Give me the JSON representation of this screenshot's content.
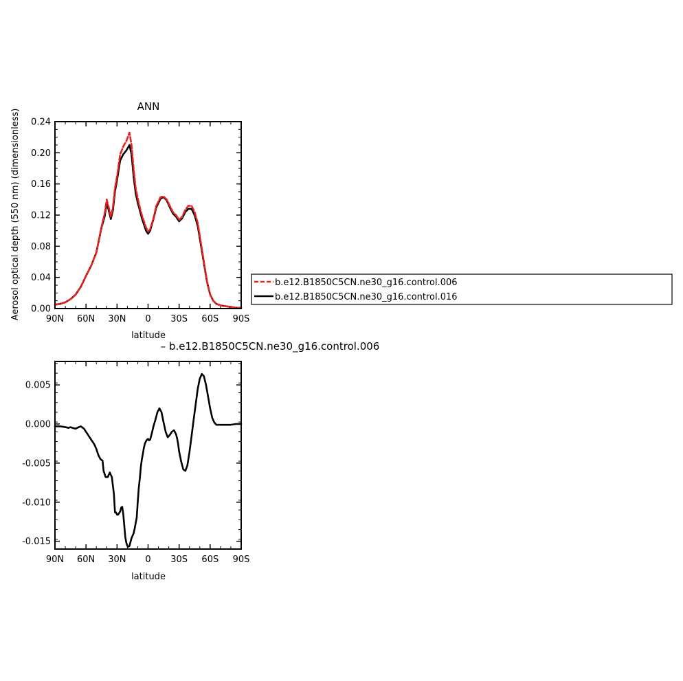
{
  "chart_data": [
    {
      "type": "line",
      "title": "ANN",
      "xlabel": "latitude",
      "ylabel": "Aerosol optical depth (550 nm) (dimensionless)",
      "xlim": [
        90,
        -90
      ],
      "ylim": [
        0.0,
        0.24
      ],
      "x_ticks": [
        90,
        60,
        30,
        0,
        -30,
        -60,
        -90
      ],
      "x_tick_labels": [
        "90N",
        "60N",
        "30N",
        "0",
        "30S",
        "60S",
        "90S"
      ],
      "y_ticks": [
        0.0,
        0.04,
        0.08,
        0.12,
        0.16,
        0.2,
        0.24
      ],
      "y_tick_labels": [
        "0.00",
        "0.04",
        "0.08",
        "0.12",
        "0.16",
        "0.20",
        "0.24"
      ],
      "grid": false,
      "legend_position": "right",
      "series": [
        {
          "name": "b.e12.B1850C5CN.ne30_g16.control.006",
          "color": "#e8231f",
          "style": "dashed",
          "x": [
            90,
            85,
            80,
            75,
            70,
            65,
            60,
            55,
            50,
            45,
            42,
            40,
            38,
            36,
            34,
            32,
            30,
            27,
            24,
            21,
            18,
            16,
            14,
            12,
            10,
            8,
            6,
            4,
            2,
            0,
            -2,
            -5,
            -8,
            -12,
            -15,
            -18,
            -21,
            -24,
            -27,
            -30,
            -33,
            -36,
            -39,
            -42,
            -45,
            -48,
            -51,
            -54,
            -57,
            -60,
            -63,
            -66,
            -70,
            -75,
            -80,
            -85,
            -90
          ],
          "values": [
            0.005,
            0.006,
            0.008,
            0.012,
            0.018,
            0.028,
            0.042,
            0.055,
            0.072,
            0.105,
            0.122,
            0.14,
            0.13,
            0.118,
            0.13,
            0.155,
            0.17,
            0.198,
            0.208,
            0.215,
            0.226,
            0.21,
            0.18,
            0.155,
            0.142,
            0.13,
            0.12,
            0.112,
            0.104,
            0.099,
            0.102,
            0.115,
            0.132,
            0.143,
            0.144,
            0.14,
            0.132,
            0.124,
            0.12,
            0.114,
            0.118,
            0.127,
            0.132,
            0.132,
            0.124,
            0.11,
            0.085,
            0.06,
            0.035,
            0.018,
            0.01,
            0.006,
            0.004,
            0.003,
            0.002,
            0.001,
            0.001
          ]
        },
        {
          "name": "b.e12.B1850C5CN.ne30_g16.control.016",
          "color": "#000000",
          "style": "solid",
          "x": [
            90,
            85,
            80,
            75,
            70,
            65,
            60,
            55,
            50,
            45,
            42,
            40,
            38,
            36,
            34,
            32,
            30,
            27,
            24,
            21,
            18,
            16,
            14,
            12,
            10,
            8,
            6,
            4,
            2,
            0,
            -2,
            -5,
            -8,
            -12,
            -15,
            -18,
            -21,
            -24,
            -27,
            -30,
            -33,
            -36,
            -39,
            -42,
            -45,
            -48,
            -51,
            -54,
            -57,
            -60,
            -63,
            -66,
            -70,
            -75,
            -80,
            -85,
            -90
          ],
          "values": [
            0.005,
            0.006,
            0.008,
            0.012,
            0.018,
            0.028,
            0.042,
            0.055,
            0.072,
            0.104,
            0.118,
            0.136,
            0.126,
            0.115,
            0.126,
            0.15,
            0.165,
            0.19,
            0.198,
            0.203,
            0.21,
            0.198,
            0.17,
            0.148,
            0.136,
            0.126,
            0.116,
            0.108,
            0.1,
            0.096,
            0.1,
            0.114,
            0.13,
            0.141,
            0.143,
            0.139,
            0.13,
            0.122,
            0.118,
            0.112,
            0.116,
            0.124,
            0.128,
            0.128,
            0.12,
            0.106,
            0.082,
            0.058,
            0.034,
            0.018,
            0.01,
            0.006,
            0.004,
            0.003,
            0.002,
            0.001,
            0.001
          ]
        }
      ]
    },
    {
      "type": "line",
      "title": "– b.e12.B1850C5CN.ne30_g16.control.006",
      "xlabel": "latitude",
      "ylabel": "",
      "xlim": [
        90,
        -90
      ],
      "ylim": [
        -0.016,
        0.008
      ],
      "x_ticks": [
        90,
        60,
        30,
        0,
        -30,
        -60,
        -90
      ],
      "x_tick_labels": [
        "90N",
        "60N",
        "30N",
        "0",
        "30S",
        "60S",
        "90S"
      ],
      "y_ticks": [
        -0.015,
        -0.01,
        -0.005,
        0.0,
        0.005
      ],
      "y_tick_labels": [
        "-0.015",
        "-0.010",
        "-0.005",
        "0.000",
        "0.005"
      ],
      "grid": false,
      "series": [
        {
          "color": "#000000",
          "style": "solid",
          "x": [
            90,
            85,
            80,
            77,
            75,
            73,
            70,
            67,
            65,
            62,
            58,
            55,
            52,
            50,
            48,
            46,
            44,
            43,
            41,
            39,
            37,
            35,
            33,
            32,
            31,
            30,
            29,
            27,
            26,
            25,
            24,
            23,
            22,
            21,
            20,
            19,
            18,
            17,
            16,
            15,
            14,
            13,
            11,
            10,
            9,
            8,
            7,
            6,
            5,
            4,
            3,
            2,
            1,
            0,
            -1,
            -2,
            -3,
            -4,
            -5,
            -7,
            -9,
            -11,
            -13,
            -15,
            -17,
            -19,
            -21,
            -23,
            -25,
            -27,
            -28,
            -29,
            -30,
            -32,
            -34,
            -36,
            -38,
            -40,
            -42,
            -44,
            -46,
            -48,
            -50,
            -52,
            -54,
            -56,
            -58,
            -60,
            -62,
            -64,
            -66,
            -68,
            -70,
            -75,
            -80,
            -85,
            -90
          ],
          "values": [
            -0.0003,
            -0.0003,
            -0.0004,
            -0.0005,
            -0.0004,
            -0.0005,
            -0.0006,
            -0.0004,
            -0.0003,
            -0.0006,
            -0.0014,
            -0.002,
            -0.0026,
            -0.0032,
            -0.004,
            -0.0045,
            -0.0047,
            -0.006,
            -0.0068,
            -0.0068,
            -0.0062,
            -0.0068,
            -0.009,
            -0.0113,
            -0.0113,
            -0.0116,
            -0.0116,
            -0.0112,
            -0.0107,
            -0.0106,
            -0.0115,
            -0.013,
            -0.0145,
            -0.0152,
            -0.0156,
            -0.0157,
            -0.0156,
            -0.0151,
            -0.0146,
            -0.0143,
            -0.014,
            -0.0134,
            -0.012,
            -0.01,
            -0.0082,
            -0.007,
            -0.0055,
            -0.0045,
            -0.0038,
            -0.003,
            -0.0025,
            -0.0022,
            -0.002,
            -0.0019,
            -0.0021,
            -0.002,
            -0.0015,
            -0.001,
            -0.0004,
            0.0005,
            0.0015,
            0.002,
            0.0015,
            0.0002,
            -0.001,
            -0.0017,
            -0.0014,
            -0.001,
            -0.0008,
            -0.0013,
            -0.0018,
            -0.0025,
            -0.0035,
            -0.0048,
            -0.0058,
            -0.006,
            -0.0053,
            -0.0036,
            -0.0016,
            0.0005,
            0.0025,
            0.0045,
            0.0058,
            0.0064,
            0.0061,
            0.005,
            0.0035,
            0.002,
            0.0008,
            0.0002,
            -0.0001,
            -0.0001,
            -0.0001,
            -0.0001,
            -0.0001,
            0.0,
            0.0
          ]
        }
      ]
    }
  ],
  "legend": {
    "entries": [
      {
        "label": "b.e12.B1850C5CN.ne30_g16.control.006",
        "color": "#e8231f",
        "style": "dashed"
      },
      {
        "label": "b.e12.B1850C5CN.ne30_g16.control.016",
        "color": "#000000",
        "style": "solid"
      }
    ]
  }
}
